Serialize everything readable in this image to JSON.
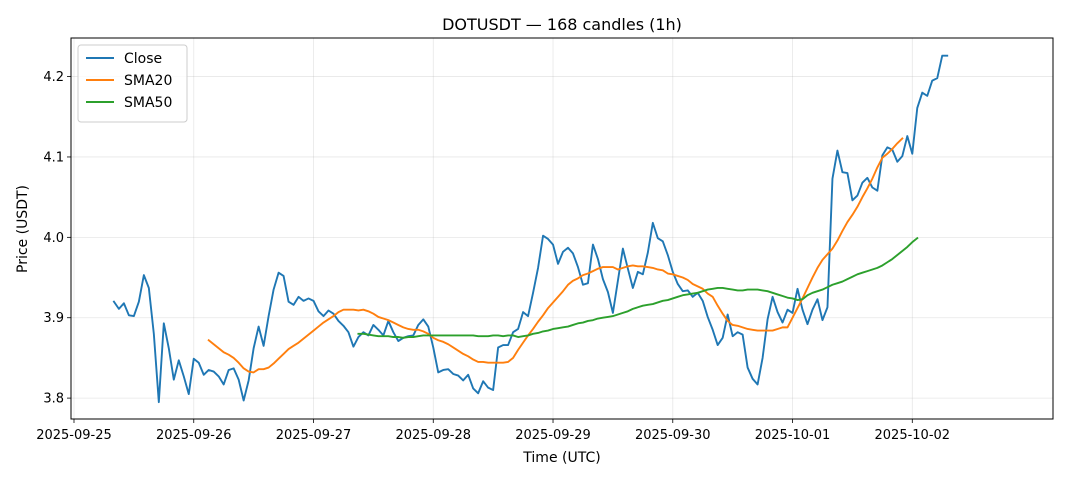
{
  "chart_data": {
    "type": "line",
    "title": "DOTUSDT — 168 candles (1h)",
    "xlabel": "Time (UTC)",
    "ylabel": "Price (USDT)",
    "x_unit": "hours since 2025-09-25 00:00 UTC",
    "xlim": [
      -0.6,
      196.2
    ],
    "ylim": [
      3.774,
      4.248
    ],
    "x_ticks": [
      {
        "label": "2025-09-25",
        "value": 0
      },
      {
        "label": "2025-09-26",
        "value": 24
      },
      {
        "label": "2025-09-27",
        "value": 48
      },
      {
        "label": "2025-09-28",
        "value": 72
      },
      {
        "label": "2025-09-29",
        "value": 96
      },
      {
        "label": "2025-09-30",
        "value": 120
      },
      {
        "label": "2025-10-01",
        "value": 144
      },
      {
        "label": "2025-10-02",
        "value": 168
      }
    ],
    "y_ticks": [
      {
        "label": "3.8",
        "value": 3.8
      },
      {
        "label": "3.9",
        "value": 3.9
      },
      {
        "label": "4.0",
        "value": 4.0
      },
      {
        "label": "4.1",
        "value": 4.1
      },
      {
        "label": "4.2",
        "value": 4.2
      }
    ],
    "grid": true,
    "legend_position": "upper-left",
    "series": [
      {
        "name": "Close",
        "color": "#1f77b4",
        "x_start": 8,
        "x_step": 1,
        "values": [
          3.92,
          3.911,
          3.918,
          3.903,
          3.902,
          3.92,
          3.953,
          3.937,
          3.88,
          3.795,
          3.893,
          3.862,
          3.823,
          3.847,
          3.827,
          3.805,
          3.849,
          3.844,
          3.829,
          3.835,
          3.833,
          3.827,
          3.817,
          3.835,
          3.837,
          3.823,
          3.797,
          3.822,
          3.862,
          3.889,
          3.865,
          3.902,
          3.935,
          3.956,
          3.952,
          3.92,
          3.916,
          3.926,
          3.921,
          3.924,
          3.921,
          3.908,
          3.902,
          3.909,
          3.905,
          3.896,
          3.89,
          3.882,
          3.864,
          3.876,
          3.882,
          3.878,
          3.891,
          3.885,
          3.878,
          3.896,
          3.882,
          3.871,
          3.875,
          3.877,
          3.878,
          3.891,
          3.898,
          3.889,
          3.863,
          3.832,
          3.835,
          3.836,
          3.83,
          3.828,
          3.822,
          3.829,
          3.812,
          3.806,
          3.821,
          3.813,
          3.81,
          3.863,
          3.866,
          3.866,
          3.882,
          3.886,
          3.907,
          3.902,
          3.931,
          3.962,
          4.002,
          3.998,
          3.991,
          3.967,
          3.982,
          3.987,
          3.98,
          3.963,
          3.941,
          3.943,
          3.991,
          3.973,
          3.948,
          3.932,
          3.906,
          3.946,
          3.986,
          3.961,
          3.937,
          3.957,
          3.954,
          3.981,
          4.018,
          3.999,
          3.995,
          3.978,
          3.957,
          3.942,
          3.933,
          3.934,
          3.926,
          3.931,
          3.921,
          3.901,
          3.885,
          3.866,
          3.875,
          3.904,
          3.877,
          3.882,
          3.879,
          3.838,
          3.824,
          3.817,
          3.85,
          3.898,
          3.926,
          3.907,
          3.894,
          3.91,
          3.906,
          3.936,
          3.91,
          3.892,
          3.91,
          3.923,
          3.897,
          3.913,
          4.073,
          4.108,
          4.081,
          4.08,
          4.046,
          4.052,
          4.068,
          4.074,
          4.062,
          4.058,
          4.102,
          4.112,
          4.109,
          4.094,
          4.101,
          4.126,
          4.104,
          4.161,
          4.18,
          4.176,
          4.195,
          4.198,
          4.226,
          4.226
        ]
      },
      {
        "name": "SMA20",
        "color": "#ff7f0e",
        "x_start": 27,
        "x_step": 1,
        "values": [
          3.872,
          3.867,
          3.862,
          3.857,
          3.854,
          3.85,
          3.844,
          3.837,
          3.833,
          3.832,
          3.836,
          3.836,
          3.838,
          3.843,
          3.849,
          3.855,
          3.861,
          3.865,
          3.869,
          3.874,
          3.879,
          3.884,
          3.889,
          3.894,
          3.898,
          3.902,
          3.907,
          3.91,
          3.91,
          3.91,
          3.909,
          3.91,
          3.908,
          3.905,
          3.901,
          3.899,
          3.897,
          3.894,
          3.891,
          3.888,
          3.886,
          3.885,
          3.885,
          3.883,
          3.88,
          3.875,
          3.872,
          3.87,
          3.867,
          3.863,
          3.859,
          3.855,
          3.852,
          3.848,
          3.845,
          3.845,
          3.844,
          3.844,
          3.844,
          3.844,
          3.845,
          3.85,
          3.86,
          3.869,
          3.878,
          3.886,
          3.895,
          3.903,
          3.912,
          3.919,
          3.926,
          3.933,
          3.941,
          3.946,
          3.949,
          3.953,
          3.955,
          3.958,
          3.961,
          3.963,
          3.963,
          3.963,
          3.96,
          3.962,
          3.964,
          3.965,
          3.964,
          3.964,
          3.963,
          3.962,
          3.96,
          3.959,
          3.955,
          3.954,
          3.952,
          3.95,
          3.947,
          3.942,
          3.939,
          3.936,
          3.93,
          3.926,
          3.915,
          3.905,
          3.896,
          3.891,
          3.89,
          3.888,
          3.886,
          3.885,
          3.884,
          3.884,
          3.884,
          3.884,
          3.886,
          3.888,
          3.888,
          3.9,
          3.912,
          3.924,
          3.937,
          3.95,
          3.962,
          3.972,
          3.979,
          3.986,
          3.996,
          4.008,
          4.019,
          4.028,
          4.038,
          4.05,
          4.061,
          4.073,
          4.087,
          4.099,
          4.104,
          4.11,
          4.117,
          4.123
        ]
      },
      {
        "name": "SMA50",
        "color": "#2ca02c",
        "x_start": 57,
        "x_step": 1,
        "values": [
          3.88,
          3.88,
          3.879,
          3.878,
          3.877,
          3.877,
          3.877,
          3.876,
          3.876,
          3.875,
          3.876,
          3.876,
          3.877,
          3.878,
          3.878,
          3.878,
          3.878,
          3.878,
          3.878,
          3.878,
          3.878,
          3.878,
          3.878,
          3.878,
          3.877,
          3.877,
          3.877,
          3.878,
          3.878,
          3.877,
          3.878,
          3.878,
          3.876,
          3.877,
          3.878,
          3.88,
          3.881,
          3.883,
          3.884,
          3.886,
          3.887,
          3.888,
          3.889,
          3.891,
          3.893,
          3.894,
          3.896,
          3.897,
          3.899,
          3.9,
          3.901,
          3.902,
          3.904,
          3.906,
          3.908,
          3.911,
          3.913,
          3.915,
          3.916,
          3.917,
          3.919,
          3.921,
          3.922,
          3.924,
          3.926,
          3.928,
          3.929,
          3.93,
          3.931,
          3.933,
          3.935,
          3.936,
          3.937,
          3.937,
          3.936,
          3.935,
          3.934,
          3.934,
          3.935,
          3.935,
          3.935,
          3.934,
          3.933,
          3.931,
          3.929,
          3.927,
          3.925,
          3.924,
          3.922,
          3.923,
          3.928,
          3.931,
          3.933,
          3.935,
          3.938,
          3.941,
          3.943,
          3.945,
          3.948,
          3.951,
          3.954,
          3.956,
          3.958,
          3.96,
          3.962,
          3.965,
          3.969,
          3.973,
          3.978,
          3.983,
          3.988,
          3.994,
          3.999
        ]
      }
    ]
  }
}
